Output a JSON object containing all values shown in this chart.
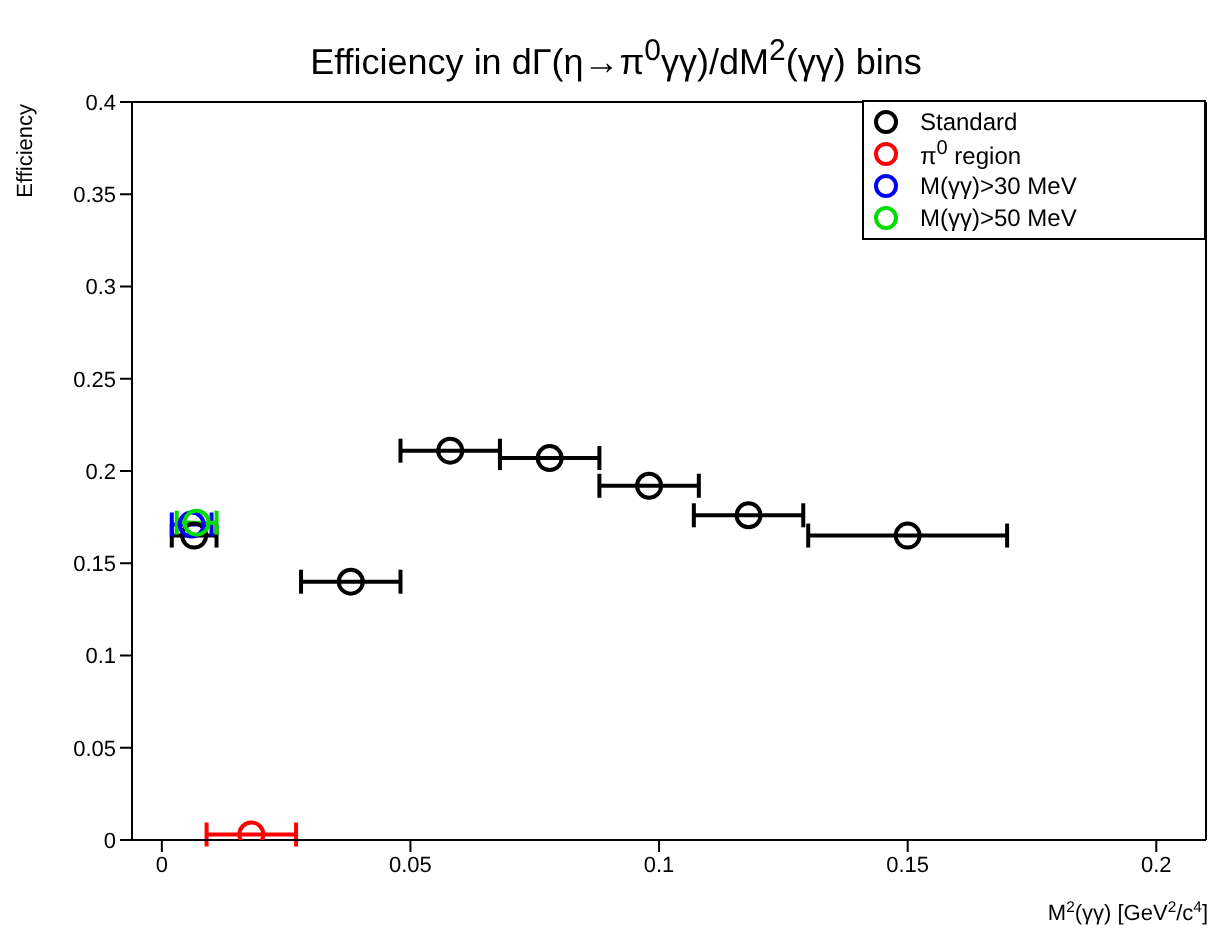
{
  "chart_data": {
    "type": "scatter",
    "title": "Efficiency in dΓ(η→π$^{0}$γγ)/dM$^{2}$(γγ) bins",
    "xlabel": "M$^{2}$(γγ) [GeV$^{2}$/c$^{4}$]",
    "ylabel": "Efficiency",
    "xlim": [
      -0.006,
      0.21
    ],
    "xticks": [
      {
        "value": 0,
        "label": "0"
      },
      0.05,
      0.1,
      0.15,
      0.2
    ],
    "ylim": [
      0,
      0.4
    ],
    "yticks": [
      {
        "value": 0,
        "label": "0"
      },
      0.05,
      0.1,
      0.15,
      0.2,
      0.25,
      0.3,
      0.35,
      0.4
    ],
    "grid": false,
    "legend": "top right",
    "marker": "circle",
    "series": [
      {
        "name": "Standard",
        "color": "#000000",
        "x": [
          0.0065,
          0.038,
          0.058,
          0.078,
          0.098,
          0.118,
          0.15
        ],
        "values": [
          0.165,
          0.14,
          0.211,
          0.207,
          0.192,
          0.176,
          0.165
        ],
        "xerrors": [
          0.0045,
          0.01,
          0.01,
          0.01,
          0.01,
          0.011,
          0.02
        ]
      },
      {
        "name": "π$^{0}$ region",
        "color": "#ff0000",
        "x": [
          0.018
        ],
        "values": [
          0.003
        ],
        "xerrors": [
          0.009
        ]
      },
      {
        "name": "M(γγ)>30 MeV",
        "color": "#0000ff",
        "x": [
          0.006
        ],
        "values": [
          0.171
        ],
        "xerrors": [
          0.004
        ]
      },
      {
        "name": "M(γγ)>50 MeV",
        "color": "#00dd00",
        "x": [
          0.007
        ],
        "values": [
          0.172
        ],
        "xerrors": [
          0.004
        ]
      }
    ]
  }
}
